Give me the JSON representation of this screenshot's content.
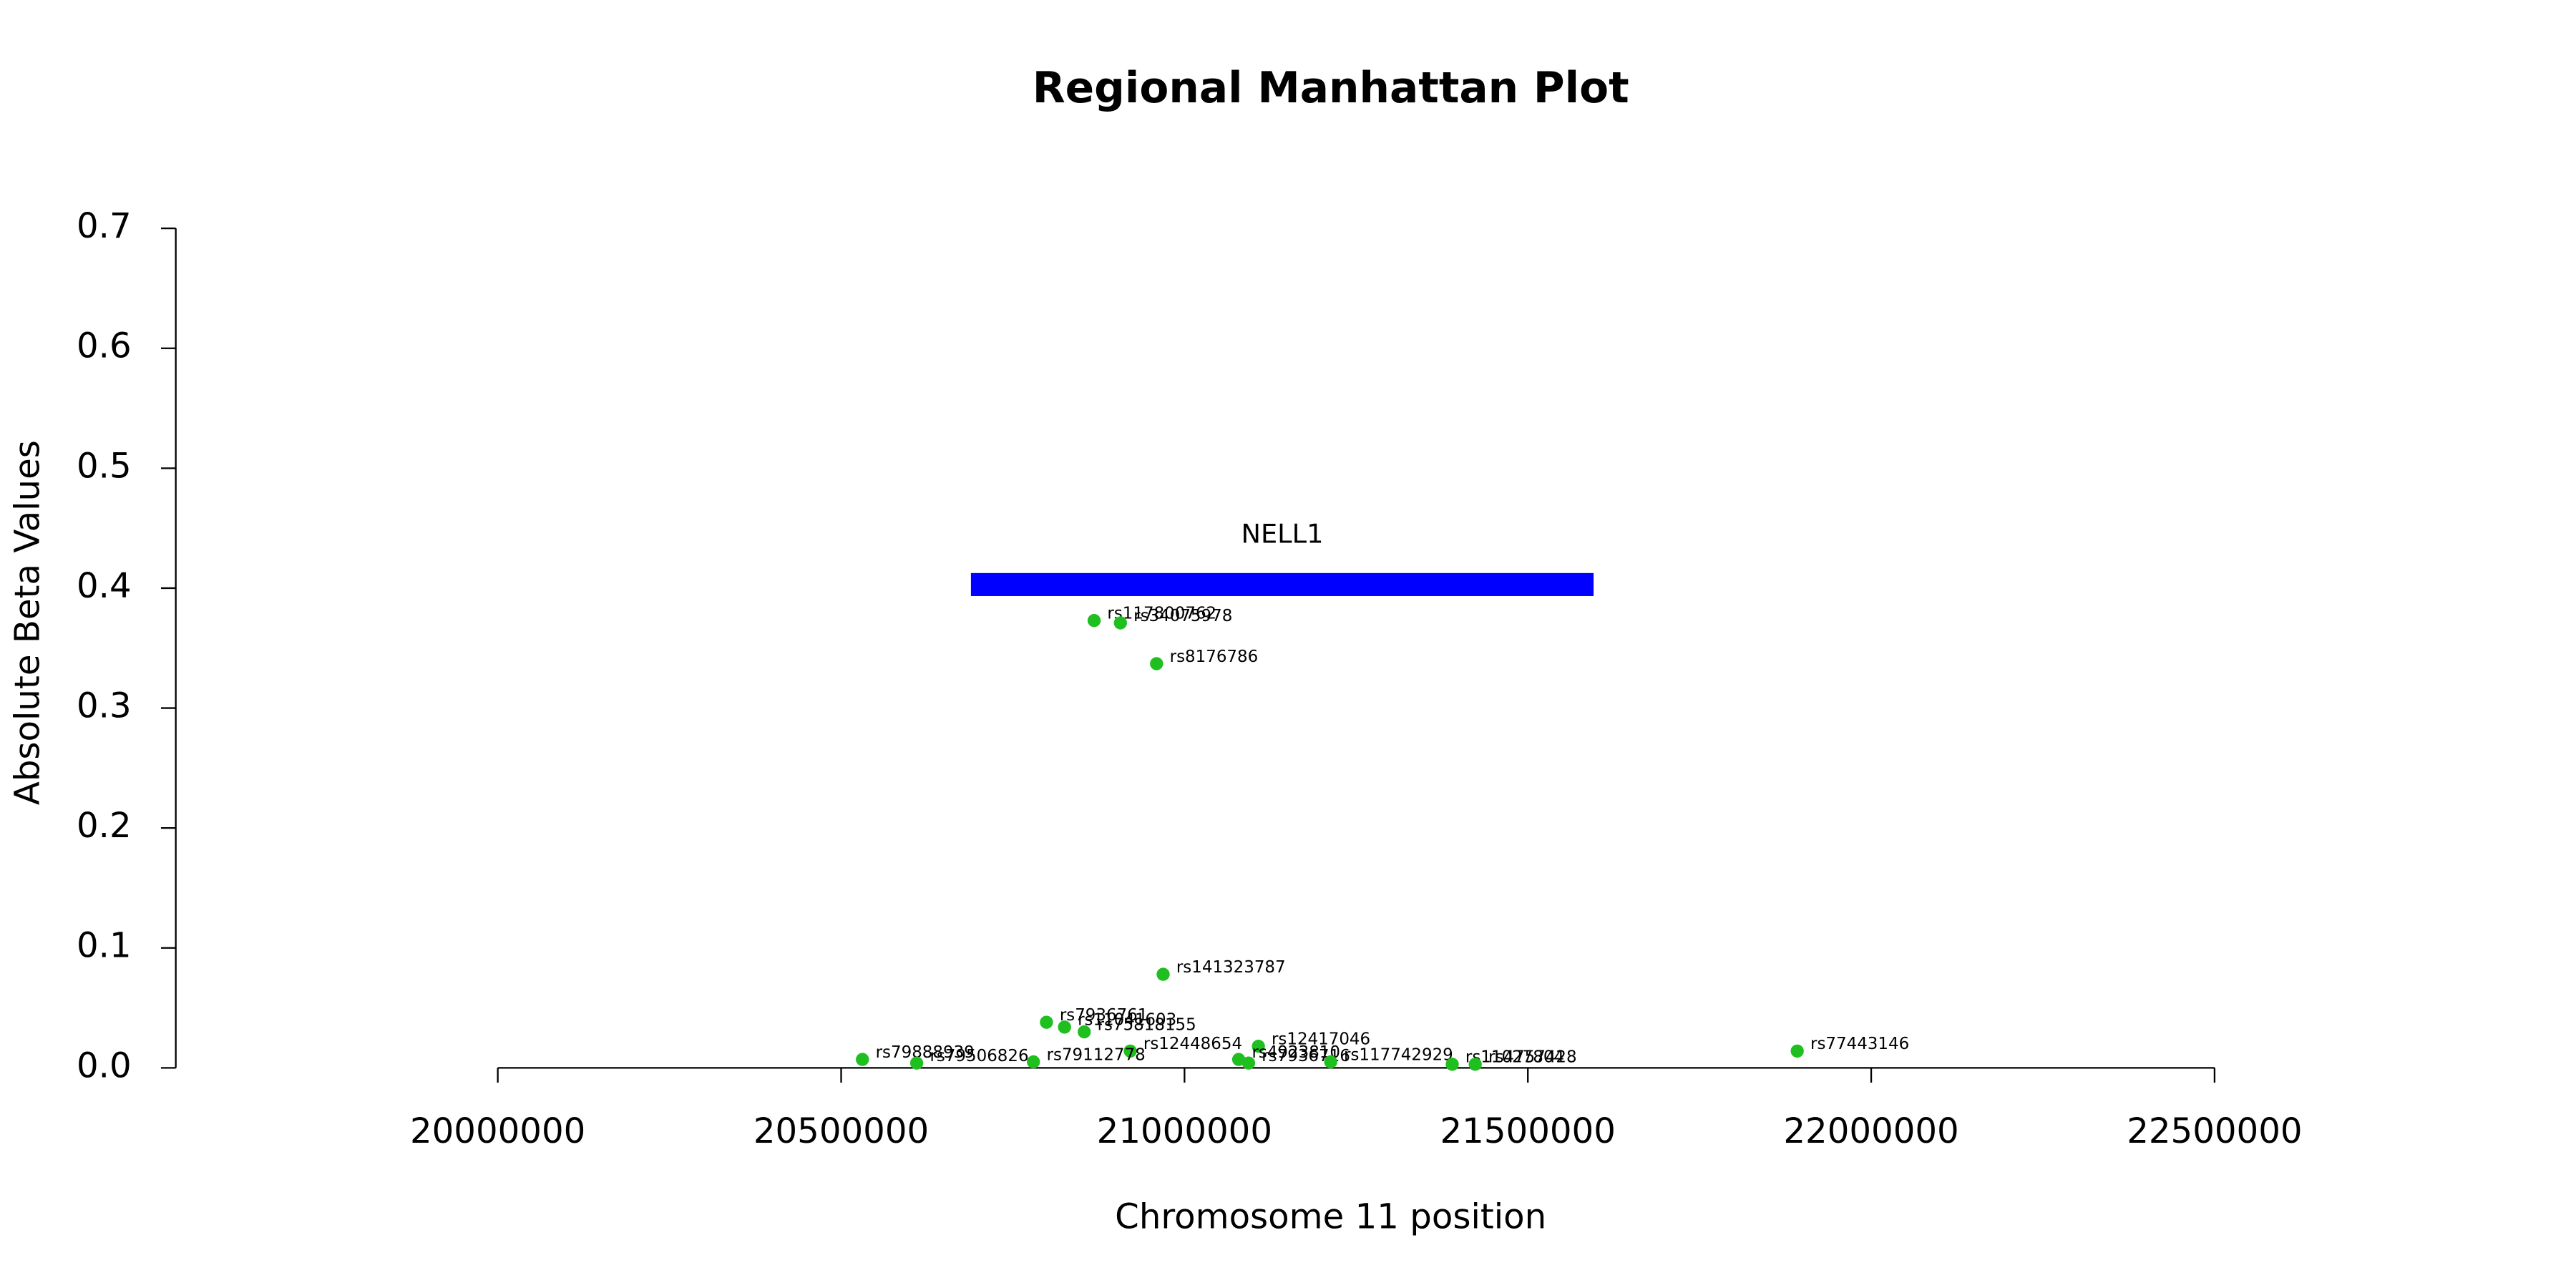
{
  "chart_data": {
    "type": "scatter",
    "title": "Regional Manhattan Plot",
    "xlabel": "Chromosome 11 position",
    "ylabel": "Absolute Beta Values",
    "xlim": [
      20000000,
      22500000
    ],
    "ylim": [
      0,
      0.7
    ],
    "xticks": [
      20000000,
      20500000,
      21000000,
      21500000,
      22000000,
      22500000
    ],
    "yticks": [
      {
        "value": 0,
        "label": "0.0"
      },
      0.1,
      0.2,
      0.3,
      0.4,
      0.5,
      0.6,
      0.7
    ],
    "series": [
      {
        "color": "#1fbf1f",
        "x": [
          20868400,
          20906700,
          20959300,
          20968900,
          20799000,
          20825300,
          20854000,
          20921000,
          21107600,
          21078900,
          21093300,
          21212900,
          21892300,
          20531000,
          20610000,
          20780000,
          21389900,
          21423400
        ],
        "values": [
          0.373,
          0.371,
          0.337,
          0.078,
          0.038,
          0.034,
          0.03,
          0.014,
          0.018,
          0.007,
          0.004,
          0.005,
          0.014,
          0.007,
          0.004,
          0.005,
          0.003,
          0.003
        ],
        "labels": [
          "rs117800762",
          "rs34075978",
          "rs8176786",
          "rs141323787",
          "rs7936761",
          "rs11041603",
          "rs75818155",
          "rs12448654",
          "rs12417046",
          "rs4923810",
          "rs7936716",
          "rs117742929",
          "rs77443146",
          "rs79888939",
          "rs79506826",
          "rs79112778",
          "rs11027804",
          "rs4757428"
        ]
      }
    ],
    "annotations": [
      {
        "label": "NELL1",
        "start": 20689000,
        "end": 21595700,
        "y": 0.403,
        "color": "#0000ff"
      }
    ]
  }
}
